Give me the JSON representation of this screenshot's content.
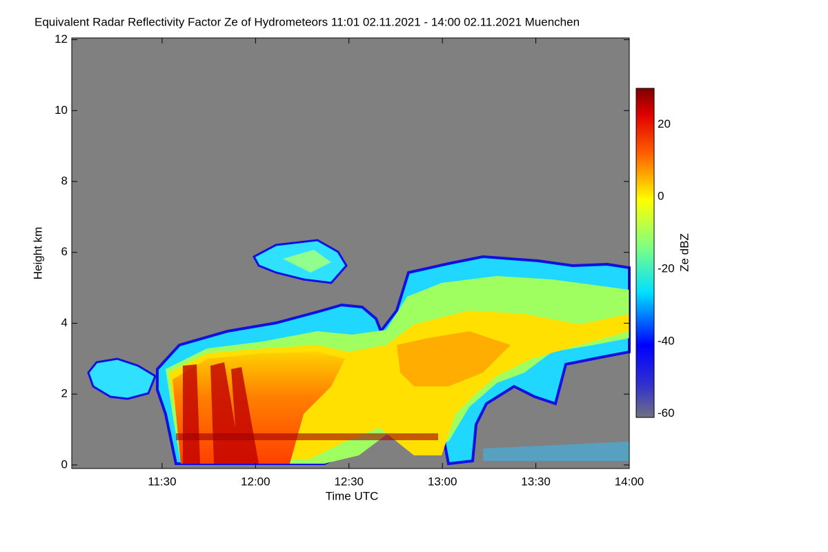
{
  "chart_data": {
    "type": "heatmap",
    "title": "Equivalent Radar Reflectivity Factor Ze of Hydrometeors   11:01 02.11.2021 - 14:00 02.11.2021 Muenchen",
    "xlabel": "Time UTC",
    "ylabel": "Height km",
    "colorbar_label": "Ze dBZ",
    "xlim": [
      "11:01",
      "14:00"
    ],
    "xticks": [
      "11:30",
      "12:00",
      "12:30",
      "13:00",
      "13:30",
      "14:00"
    ],
    "ylim": [
      -0.1,
      12.05
    ],
    "yticks": [
      0,
      2,
      4,
      6,
      8,
      10,
      12
    ],
    "zlim": [
      -61,
      30
    ],
    "zticks": [
      -60,
      -40,
      -20,
      0,
      20
    ]
  }
}
